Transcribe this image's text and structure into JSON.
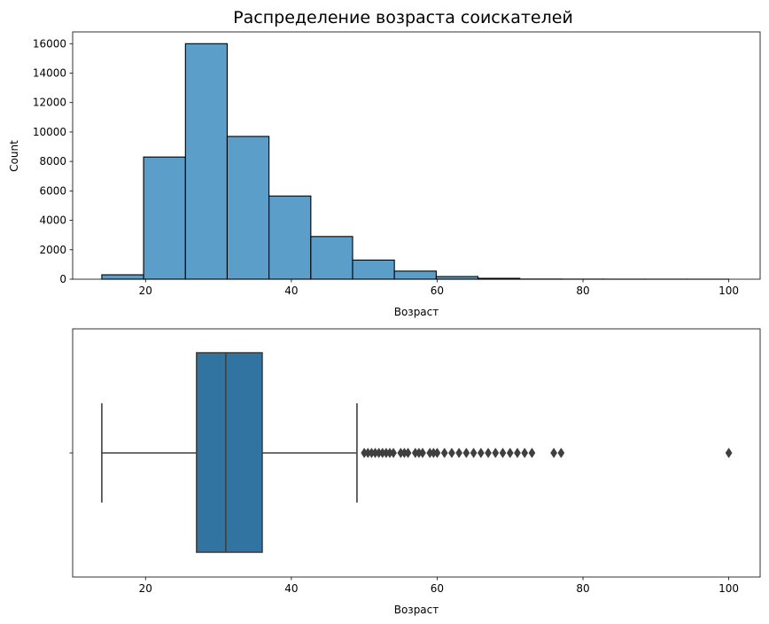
{
  "title": "Распределение возраста соискателей",
  "colors": {
    "hist_fill": "#5a9ec9",
    "box_fill": "#3274a1",
    "edge": "#000000",
    "box_line": "#3f3f3f"
  },
  "chart_data": [
    {
      "type": "bar",
      "subtype": "histogram",
      "title": "Распределение возраста соискателей",
      "xlabel": "Возраст",
      "ylabel": "Count",
      "xlim": [
        10,
        104.3
      ],
      "ylim": [
        0,
        16800
      ],
      "xticks": [
        20,
        40,
        60,
        80,
        100
      ],
      "yticks": [
        0,
        2000,
        4000,
        6000,
        8000,
        10000,
        12000,
        14000,
        16000
      ],
      "bin_edges": [
        14.0,
        19.73,
        25.47,
        31.2,
        36.93,
        42.67,
        48.4,
        54.13,
        59.87,
        65.6,
        71.33,
        77.07,
        82.8,
        88.53,
        94.27,
        100.0
      ],
      "values": [
        300,
        8300,
        16000,
        9700,
        5650,
        2900,
        1300,
        550,
        180,
        60,
        10,
        5,
        3,
        2,
        1
      ],
      "grid": false
    },
    {
      "type": "boxplot",
      "xlabel": "Возраст",
      "xlim": [
        10,
        104.3
      ],
      "xticks": [
        20,
        40,
        60,
        80,
        100
      ],
      "whisker_low": 14,
      "q1": 27,
      "median": 31,
      "q3": 36,
      "whisker_high": 49,
      "outliers": [
        50,
        50.5,
        51,
        51.5,
        52,
        52.5,
        53,
        53.5,
        54,
        55,
        55.5,
        56,
        57,
        57.5,
        58,
        59,
        59.5,
        60,
        61,
        62,
        63,
        64,
        65,
        66,
        67,
        68,
        69,
        70,
        71,
        72,
        73,
        76,
        77,
        100
      ],
      "grid": false
    }
  ]
}
